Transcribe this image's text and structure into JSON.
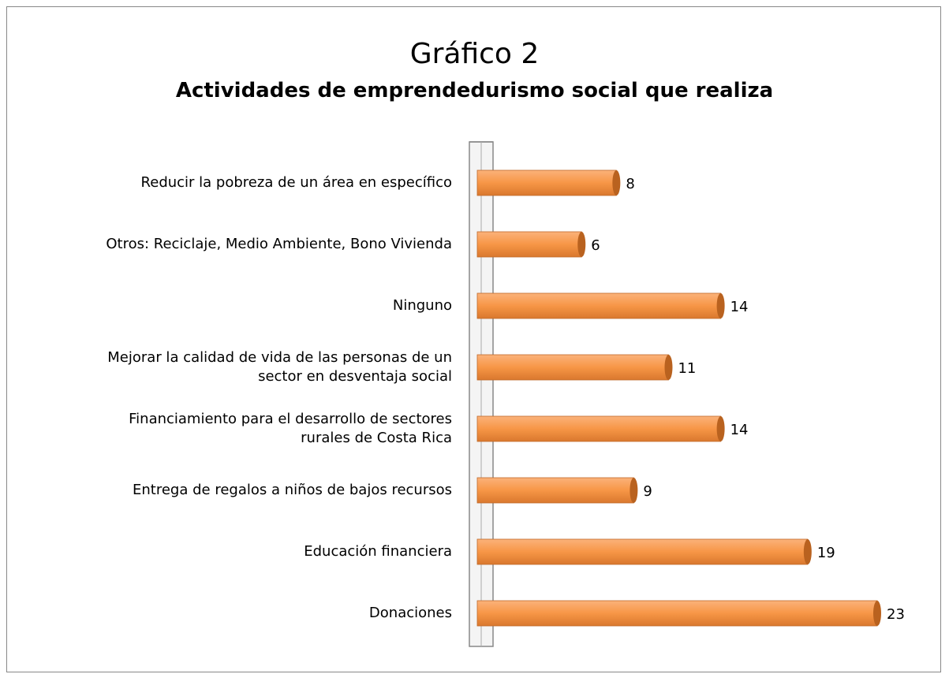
{
  "chart_data": {
    "type": "bar",
    "orientation": "horizontal",
    "title": "Gráfico 2",
    "subtitle": "Actividades de emprendedurismo social que realiza",
    "categories": [
      "Reducir la pobreza de un área en específico",
      "Otros: Reciclaje, Medio Ambiente, Bono Vivienda",
      "Ninguno",
      "Mejorar la calidad de vida de las personas de un\nsector en desventaja  social",
      "Financiamiento para el desarrollo de sectores\nrurales de Costa Rica",
      "Entrega de regalos a niños de bajos recursos",
      "Educación financiera",
      "Donaciones"
    ],
    "values": [
      8,
      6,
      14,
      11,
      14,
      9,
      19,
      23
    ],
    "color": "#f79646"
  }
}
